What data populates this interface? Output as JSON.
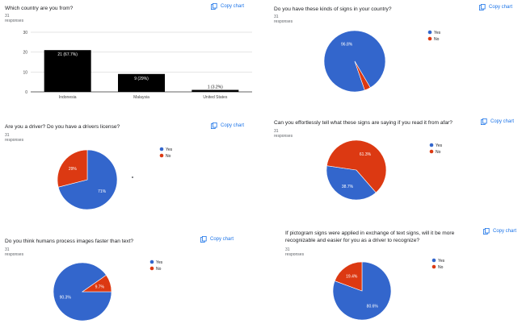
{
  "copy_label": "Copy chart",
  "colors": {
    "yes": "#3366cc",
    "no": "#dc3912",
    "bar": "#000000"
  },
  "charts": [
    {
      "title": "Which country are you from?",
      "responses": "31 responses",
      "chart_data": {
        "type": "bar",
        "title": "Which country are you from?",
        "categories": [
          "Indonesia",
          "Malaysia",
          "United States"
        ],
        "values": [
          21,
          9,
          1
        ],
        "data_labels": [
          "21 (67.7%)",
          "9 (29%)",
          "1 (3.2%)"
        ],
        "yticks": [
          0,
          10,
          20,
          30
        ],
        "ylim": [
          0,
          30
        ],
        "grid": true
      }
    },
    {
      "title": "Do you have these kinds of signs in your country?",
      "responses": "31 responses",
      "chart_data": {
        "type": "pie",
        "title": "Do you have these kinds of signs in your country?",
        "labels": [
          "Yes",
          "No"
        ],
        "values": [
          96.8,
          3.2
        ],
        "data_labels": [
          "96.8%",
          ""
        ],
        "legend": "right"
      }
    },
    {
      "title": "Are you a driver? Do you have a drivers license?",
      "responses": "31 responses",
      "chart_data": {
        "type": "pie",
        "title": "Are you a driver? Do you have a drivers license?",
        "labels": [
          "Yes",
          "No"
        ],
        "values": [
          71,
          29
        ],
        "data_labels": [
          "71%",
          "29%"
        ],
        "legend": "right"
      }
    },
    {
      "title": "Can you effortlessly tell what these signs are saying if you read it from afar?",
      "responses": "31 responses",
      "chart_data": {
        "type": "pie",
        "title": "Can you effortlessly tell what these signs are saying if you read it from afar?",
        "labels": [
          "Yes",
          "No"
        ],
        "values": [
          38.7,
          61.3
        ],
        "data_labels": [
          "38.7%",
          "61.3%"
        ],
        "legend": "right"
      }
    },
    {
      "title": "Do you think humans process images faster than text?",
      "responses": "31 responses",
      "chart_data": {
        "type": "pie",
        "title": "Do you think humans process images faster than text?",
        "labels": [
          "Yes",
          "No"
        ],
        "values": [
          90.3,
          9.7
        ],
        "data_labels": [
          "90.3%",
          "9.7%"
        ],
        "legend": "right"
      }
    },
    {
      "title": "If pictogram signs were applied in exchange of text signs, will it be more recognizable and easier for you as a driver to recognize?",
      "responses": "31 responses",
      "chart_data": {
        "type": "pie",
        "title": "If pictogram signs were applied in exchange of text signs, will it be more recognizable and easier for you as a driver to recognize?",
        "labels": [
          "Yes",
          "No"
        ],
        "values": [
          80.6,
          19.4
        ],
        "data_labels": [
          "80.6%",
          "19.4%"
        ],
        "legend": "right"
      }
    }
  ]
}
